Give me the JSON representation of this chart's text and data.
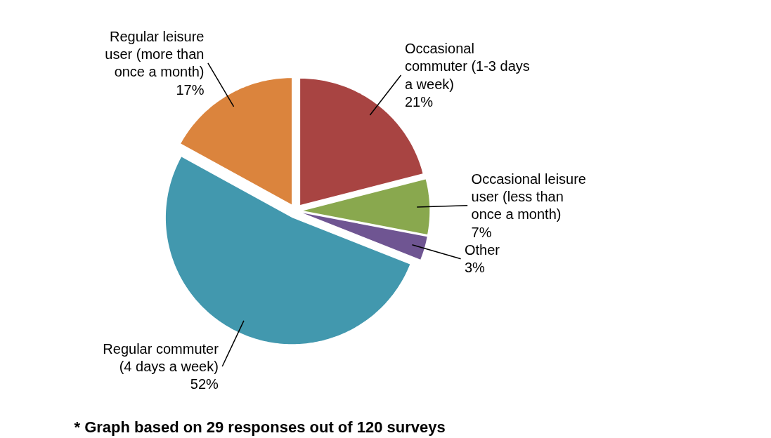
{
  "chart_data": {
    "type": "pie",
    "categories": [
      "Occasional commuter (1-3 days a week)",
      "Occasional leisure user (less than once a month)",
      "Other",
      "Regular commuter (4 days a week)",
      "Regular leisure user (more than once a month)"
    ],
    "values": [
      21,
      7,
      3,
      52,
      17
    ],
    "colors": [
      "#a84442",
      "#89a84e",
      "#6f5592",
      "#4298ae",
      "#db843d"
    ],
    "value_labels": [
      "21%",
      "7%",
      "3%",
      "52%",
      "17%"
    ],
    "annotations": [
      "* Graph based on 29 responses out of 120 surveys"
    ]
  }
}
